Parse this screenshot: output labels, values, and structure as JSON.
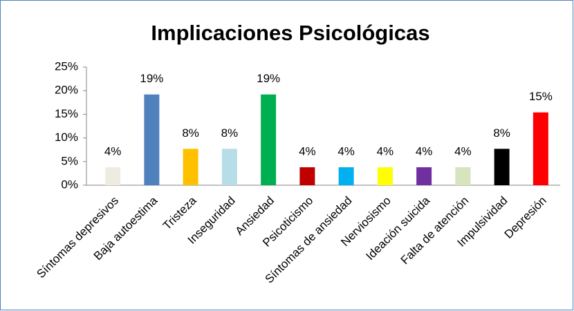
{
  "chart_data": {
    "type": "bar",
    "title": "Implicaciones Psicológicas",
    "categories": [
      "Síntomas depresivos",
      "Baja autoestima",
      "Tristeza",
      "Inseguridad",
      "Ansiedad",
      "Psicoticismo",
      "Síntomas de ansiedad",
      "Nerviosismo",
      "Ideación suicida",
      "Falta de atención",
      "Impulsividad",
      "Depresión"
    ],
    "values": [
      3.8,
      19.2,
      7.7,
      7.7,
      19.2,
      3.8,
      3.8,
      3.8,
      3.8,
      3.8,
      7.7,
      15.4
    ],
    "value_labels": [
      "4%",
      "19%",
      "8%",
      "8%",
      "19%",
      "4%",
      "4%",
      "4%",
      "4%",
      "4%",
      "8%",
      "15%"
    ],
    "colors": [
      "#eeece1",
      "#4f81bd",
      "#ffc000",
      "#b7dde8",
      "#00b050",
      "#c00000",
      "#00b0f0",
      "#ffff00",
      "#7030a0",
      "#d7e4bd",
      "#000000",
      "#ff0000"
    ],
    "ylim": [
      0,
      25
    ],
    "yticks": [
      {
        "value": 0,
        "label": "0%"
      },
      {
        "value": 5,
        "label": "5%"
      },
      {
        "value": 10,
        "label": "10%"
      },
      {
        "value": 15,
        "label": "15%"
      },
      {
        "value": 20,
        "label": "20%"
      },
      {
        "value": 25,
        "label": "25%"
      }
    ],
    "grid": false
  }
}
